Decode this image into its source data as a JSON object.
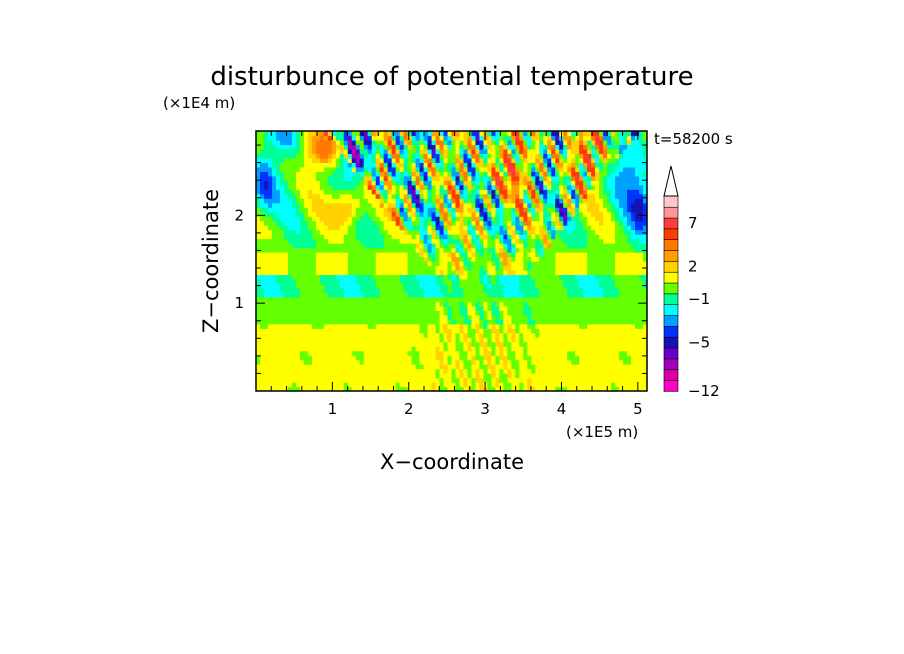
{
  "chart_data": {
    "type": "heatmap",
    "title": "disturbunce of potential temperature",
    "xlabel": "X−coordinate",
    "ylabel": "Z−coordinate",
    "x_unit": "(×1E5 m)",
    "y_unit": "(×1E4 m)",
    "time_label": "t=58200 s",
    "xlim": [
      0,
      5.12
    ],
    "ylim": [
      0,
      2.96
    ],
    "x_ticks": [
      1,
      2,
      3,
      4,
      5
    ],
    "y_ticks": [
      1,
      2
    ],
    "colorbar": {
      "levels": [
        -12,
        -11,
        -9,
        -7,
        -5,
        -4,
        -3,
        -2,
        -1,
        0,
        1,
        2,
        3,
        4,
        5,
        7,
        9,
        11,
        13
      ],
      "colors": [
        "#ff00c8",
        "#d8009e",
        "#a000c0",
        "#6a00c8",
        "#1414b4",
        "#0032ff",
        "#00a0ff",
        "#00ffff",
        "#00ff96",
        "#64ff00",
        "#ffff00",
        "#ffd200",
        "#ffa000",
        "#ff7800",
        "#ff3c00",
        "#ff3c3c",
        "#ff9696",
        "#ffc8c8"
      ],
      "tick_labels": [
        "7",
        "2",
        "−1",
        "−5",
        "−12"
      ],
      "tick_values": [
        7,
        2,
        -1,
        -5,
        -12
      ],
      "extend": "max"
    }
  }
}
